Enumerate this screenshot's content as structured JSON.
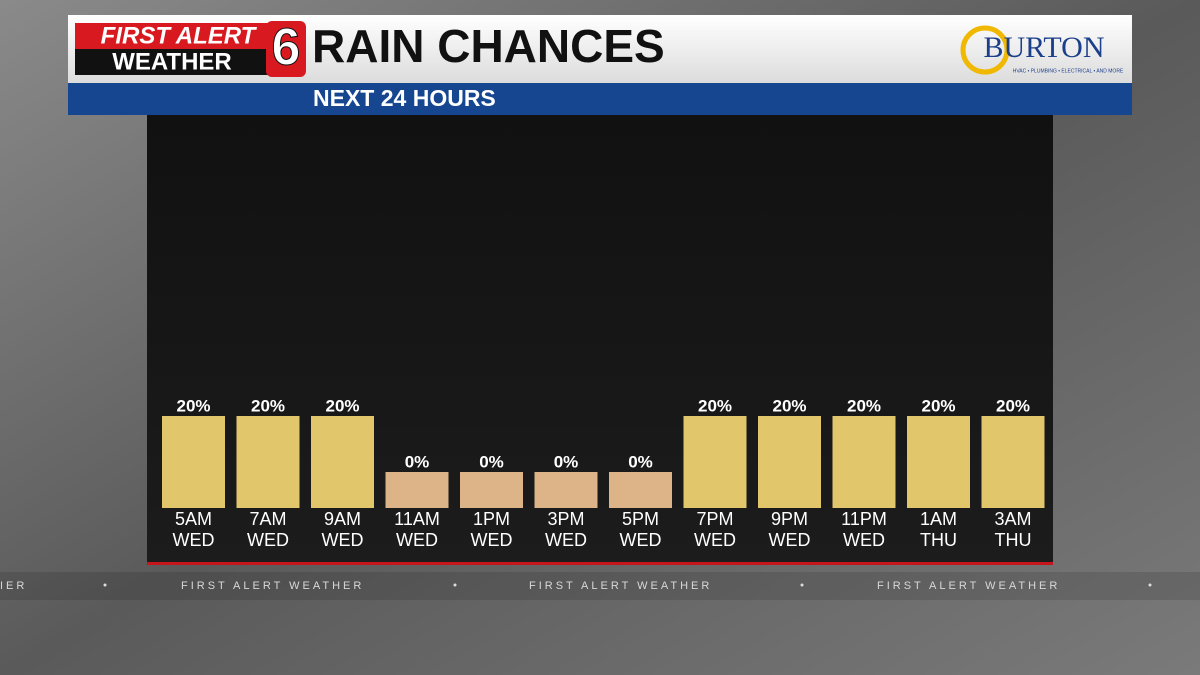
{
  "header": {
    "brand_line1": "FIRST ALERT",
    "brand_line2": "WEATHER",
    "channel": "6",
    "sponsor": "BURTON",
    "sponsor_tagline": "HVAC • PLUMBING • ELECTRICAL • AND MORE"
  },
  "chart_data": {
    "type": "bar",
    "title": "RAIN CHANCES",
    "subtitle": "NEXT 24 HOURS",
    "categories": [
      [
        "5AM",
        "WED"
      ],
      [
        "7AM",
        "WED"
      ],
      [
        "9AM",
        "WED"
      ],
      [
        "11AM",
        "WED"
      ],
      [
        "1PM",
        "WED"
      ],
      [
        "3PM",
        "WED"
      ],
      [
        "5PM",
        "WED"
      ],
      [
        "7PM",
        "WED"
      ],
      [
        "9PM",
        "WED"
      ],
      [
        "11PM",
        "WED"
      ],
      [
        "1AM",
        "THU"
      ],
      [
        "3AM",
        "THU"
      ]
    ],
    "values": [
      20,
      20,
      20,
      0,
      0,
      0,
      0,
      20,
      20,
      20,
      20,
      20
    ],
    "value_labels": [
      "20%",
      "20%",
      "20%",
      "0%",
      "0%",
      "0%",
      "0%",
      "20%",
      "20%",
      "20%",
      "20%",
      "20%"
    ],
    "colors": [
      "#e2c66b",
      "#e2c66b",
      "#e2c66b",
      "#dcb487",
      "#dcb487",
      "#dcb487",
      "#dcb487",
      "#e2c66b",
      "#e2c66b",
      "#e2c66b",
      "#e2c66b",
      "#e2c66b"
    ]
  },
  "footer_ticker": [
    "IER",
    "FIRST ALERT WEATHER",
    "FIRST ALERT WEATHER",
    "FIRST ALERT WEATHER"
  ]
}
